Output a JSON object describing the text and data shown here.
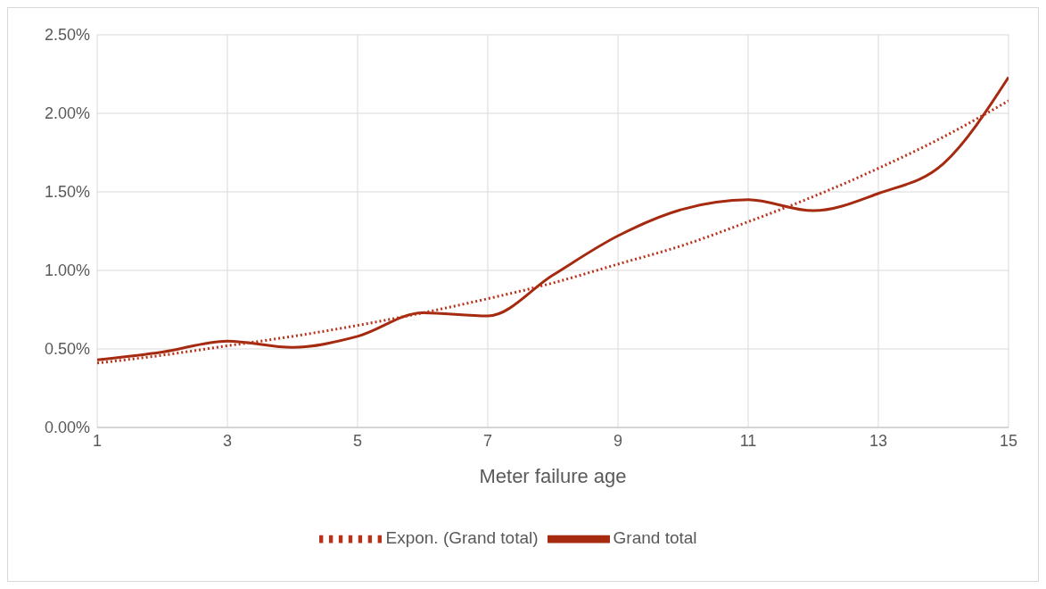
{
  "chart_data": {
    "type": "line",
    "xlabel": "Meter failure age",
    "x": [
      1,
      2,
      3,
      4,
      5,
      6,
      7,
      8,
      9,
      10,
      11,
      12,
      13,
      14,
      15
    ],
    "series": [
      {
        "name": "Grand total",
        "color": "#a52a0f",
        "line_style": "solid",
        "values": [
          0.43,
          0.48,
          0.55,
          0.51,
          0.58,
          0.73,
          0.71,
          0.97,
          1.22,
          1.39,
          1.45,
          1.38,
          1.49,
          1.68,
          2.23
        ]
      },
      {
        "name": "Expon. (Grand total)",
        "color": "#b8321a",
        "line_style": "dotted",
        "values": [
          0.41,
          0.46,
          0.52,
          0.58,
          0.65,
          0.73,
          0.82,
          0.92,
          1.04,
          1.16,
          1.31,
          1.47,
          1.65,
          1.85,
          2.08
        ]
      }
    ],
    "xlim": [
      1,
      15
    ],
    "xticks": [
      1,
      3,
      5,
      7,
      9,
      11,
      13,
      15
    ],
    "ylim": [
      0,
      2.5
    ],
    "yticks": [
      {
        "value": 0,
        "label": "0.00%"
      },
      {
        "value": 0.5,
        "label": "0.50%"
      },
      {
        "value": 1,
        "label": "1.00%"
      },
      {
        "value": 1.5,
        "label": "1.50%"
      },
      {
        "value": 2,
        "label": "2.00%"
      },
      {
        "value": 2.5,
        "label": "2.50%"
      }
    ],
    "grid": true,
    "legend": "bottom",
    "marker": "none"
  }
}
